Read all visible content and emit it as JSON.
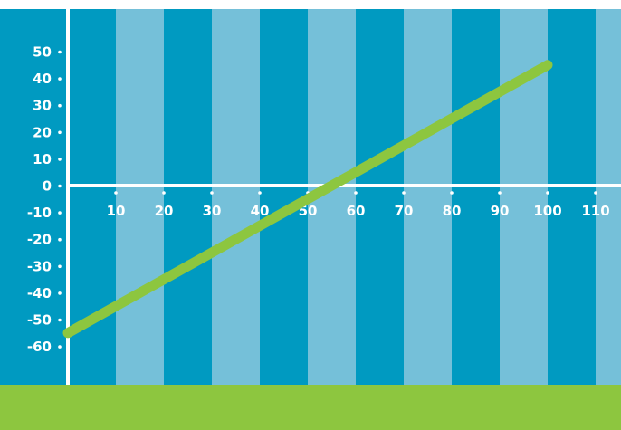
{
  "chart_data": {
    "type": "line",
    "title": "",
    "xlabel": "",
    "ylabel": "",
    "xlim": [
      0,
      110
    ],
    "ylim": [
      -60,
      50
    ],
    "x_ticks": [
      "10",
      "20",
      "30",
      "40",
      "50",
      "60",
      "70",
      "80",
      "90",
      "100",
      "110"
    ],
    "y_ticks": [
      "50",
      "40",
      "30",
      "20",
      "10",
      "0",
      "-10",
      "-20",
      "-30",
      "-40",
      "-50",
      "-60"
    ],
    "series": [
      {
        "x": [
          0,
          100
        ],
        "y": [
          -55,
          45
        ]
      }
    ],
    "grid": false,
    "legend": "none",
    "colors": {
      "band_dark": "#009ac1",
      "band_light": "#75c0d9",
      "axis": "#ffffff",
      "line": "#8dc63f",
      "footer": "#8dc63f"
    }
  }
}
